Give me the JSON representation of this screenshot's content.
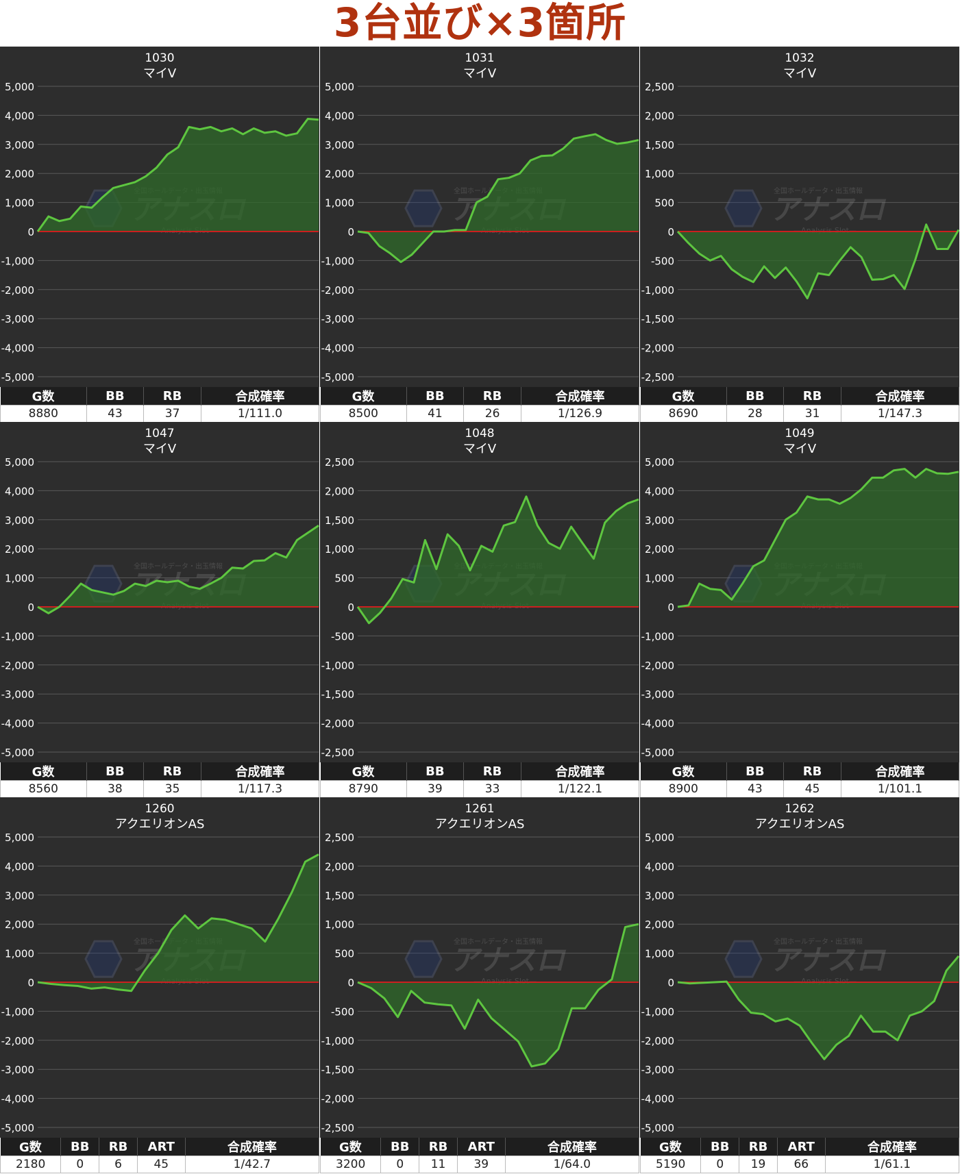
{
  "title": "3台並び×3箇所",
  "colors": {
    "panel_bg": "#2d2d2d",
    "grid": "#5a5a5a",
    "zero_line": "#cc1f1f",
    "line": "#5ec640",
    "fill": "#2f6a2a",
    "axis_text": "#ffffff",
    "title_color": "#b0320f"
  },
  "watermark": {
    "main": "アナスロ",
    "sub": "—Analysis Slot—",
    "top": "全国ホールデータ・出玉情報"
  },
  "stat_headers_a": [
    "G数",
    "BB",
    "RB",
    "合成確率"
  ],
  "stat_headers_b": [
    "G数",
    "BB",
    "RB",
    "ART",
    "合成確率"
  ],
  "chart_data": [
    {
      "type": "area",
      "machine_no": "1030",
      "model": "マイV",
      "ylim": [
        -5000,
        5000
      ],
      "yticks": [
        "5,000",
        "4,000",
        "3,000",
        "2,000",
        "1,000",
        "0",
        "-1,000",
        "-2,000",
        "-3,000",
        "-4,000",
        "-5,000"
      ],
      "values": [
        0,
        520,
        360,
        440,
        860,
        820,
        1180,
        1500,
        1600,
        1700,
        1900,
        2200,
        2650,
        2900,
        3600,
        3520,
        3600,
        3450,
        3550,
        3350,
        3550,
        3400,
        3450,
        3300,
        3380,
        3880,
        3850
      ],
      "stats": {
        "g": "8880",
        "bb": "43",
        "rb": "37",
        "rate": "1/111.0"
      }
    },
    {
      "type": "area",
      "machine_no": "1031",
      "model": "マイV",
      "ylim": [
        -5000,
        5000
      ],
      "yticks": [
        "5,000",
        "4,000",
        "3,000",
        "2,000",
        "1,000",
        "0",
        "-1,000",
        "-2,000",
        "-3,000",
        "-4,000",
        "-5,000"
      ],
      "values": [
        0,
        -50,
        -500,
        -750,
        -1050,
        -800,
        -400,
        0,
        0,
        50,
        50,
        1000,
        1200,
        1800,
        1850,
        2000,
        2450,
        2600,
        2620,
        2850,
        3200,
        3280,
        3350,
        3150,
        3020,
        3070,
        3150
      ],
      "stats": {
        "g": "8500",
        "bb": "41",
        "rb": "26",
        "rate": "1/126.9"
      }
    },
    {
      "type": "area",
      "machine_no": "1032",
      "model": "マイV",
      "ylim": [
        -2500,
        2500
      ],
      "yticks": [
        "2,500",
        "2,000",
        "1,500",
        "1,000",
        "500",
        "0",
        "-500",
        "-1,000",
        "-1,500",
        "-2,000",
        "-2,500"
      ],
      "values": [
        0,
        -200,
        -380,
        -500,
        -420,
        -650,
        -780,
        -870,
        -600,
        -800,
        -620,
        -860,
        -1150,
        -720,
        -750,
        -500,
        -270,
        -440,
        -830,
        -820,
        -750,
        -990,
        -480,
        120,
        -300,
        -300,
        30
      ],
      "stats": {
        "g": "8690",
        "bb": "28",
        "rb": "31",
        "rate": "1/147.3"
      }
    },
    {
      "type": "area",
      "machine_no": "1047",
      "model": "マイV",
      "ylim": [
        -5000,
        5000
      ],
      "yticks": [
        "5,000",
        "4,000",
        "3,000",
        "2,000",
        "1,000",
        "0",
        "-1,000",
        "-2,000",
        "-3,000",
        "-4,000",
        "-5,000"
      ],
      "values": [
        0,
        -220,
        0,
        380,
        800,
        580,
        500,
        420,
        550,
        800,
        720,
        900,
        850,
        900,
        700,
        620,
        800,
        1000,
        1350,
        1320,
        1580,
        1600,
        1850,
        1700,
        2300,
        2550,
        2800
      ],
      "stats": {
        "g": "8560",
        "bb": "38",
        "rb": "35",
        "rate": "1/117.3"
      }
    },
    {
      "type": "area",
      "machine_no": "1048",
      "model": "マイV",
      "ylim": [
        -2500,
        2500
      ],
      "yticks": [
        "2,500",
        "2,000",
        "1,500",
        "1,000",
        "500",
        "0",
        "-500",
        "-1,000",
        "-1,500",
        "-2,000",
        "-2,500"
      ],
      "values": [
        0,
        -280,
        -100,
        150,
        480,
        420,
        1150,
        650,
        1250,
        1050,
        630,
        1050,
        950,
        1400,
        1460,
        1900,
        1400,
        1100,
        1000,
        1380,
        1100,
        830,
        1450,
        1650,
        1780,
        1850
      ],
      "stats": {
        "g": "8790",
        "bb": "39",
        "rb": "33",
        "rate": "1/122.1"
      }
    },
    {
      "type": "area",
      "machine_no": "1049",
      "model": "マイV",
      "ylim": [
        -5000,
        5000
      ],
      "yticks": [
        "5,000",
        "4,000",
        "3,000",
        "2,000",
        "1,000",
        "0",
        "-1,000",
        "-2,000",
        "-3,000",
        "-4,000",
        "-5,000"
      ],
      "values": [
        0,
        50,
        800,
        620,
        580,
        250,
        800,
        1400,
        1600,
        2300,
        3000,
        3250,
        3800,
        3700,
        3700,
        3550,
        3750,
        4050,
        4450,
        4450,
        4700,
        4750,
        4450,
        4750,
        4600,
        4580,
        4650
      ],
      "stats": {
        "g": "8900",
        "bb": "43",
        "rb": "45",
        "rate": "1/101.1"
      }
    },
    {
      "type": "area",
      "machine_no": "1260",
      "model": "アクエリオンAS",
      "ylim": [
        -5000,
        5000
      ],
      "yticks": [
        "5,000",
        "4,000",
        "3,000",
        "2,000",
        "1,000",
        "0",
        "-1,000",
        "-2,000",
        "-3,000",
        "-4,000",
        "-5,000"
      ],
      "values": [
        0,
        -60,
        -100,
        -130,
        -220,
        -180,
        -250,
        -300,
        400,
        1000,
        1800,
        2300,
        1850,
        2200,
        2150,
        2000,
        1850,
        1400,
        2200,
        3100,
        4150,
        4400
      ],
      "stats": {
        "g": "2180",
        "bb": "0",
        "rb": "6",
        "art": "45",
        "rate": "1/42.7"
      }
    },
    {
      "type": "area",
      "machine_no": "1261",
      "model": "アクエリオンAS",
      "ylim": [
        -2500,
        2500
      ],
      "yticks": [
        "2,500",
        "2,000",
        "1,500",
        "1,000",
        "500",
        "0",
        "-500",
        "-1,000",
        "-1,500",
        "-2,000",
        "-2,500"
      ],
      "values": [
        0,
        -100,
        -280,
        -600,
        -150,
        -350,
        -380,
        -400,
        -800,
        -300,
        -620,
        -820,
        -1020,
        -1450,
        -1400,
        -1150,
        -450,
        -450,
        -130,
        50,
        950,
        1000
      ],
      "stats": {
        "g": "3200",
        "bb": "0",
        "rb": "11",
        "art": "39",
        "rate": "1/64.0"
      }
    },
    {
      "type": "area",
      "machine_no": "1262",
      "model": "アクエリオンAS",
      "ylim": [
        -5000,
        5000
      ],
      "yticks": [
        "5,000",
        "4,000",
        "3,000",
        "2,000",
        "1,000",
        "0",
        "-1,000",
        "-2,000",
        "-3,000",
        "-4,000",
        "-5,000"
      ],
      "values": [
        0,
        -40,
        -20,
        0,
        20,
        -600,
        -1050,
        -1100,
        -1350,
        -1250,
        -1500,
        -2100,
        -2650,
        -2150,
        -1850,
        -1150,
        -1700,
        -1700,
        -2000,
        -1150,
        -1000,
        -650,
        400,
        900
      ],
      "stats": {
        "g": "5190",
        "bb": "0",
        "rb": "19",
        "art": "66",
        "rate": "1/61.1"
      }
    }
  ]
}
